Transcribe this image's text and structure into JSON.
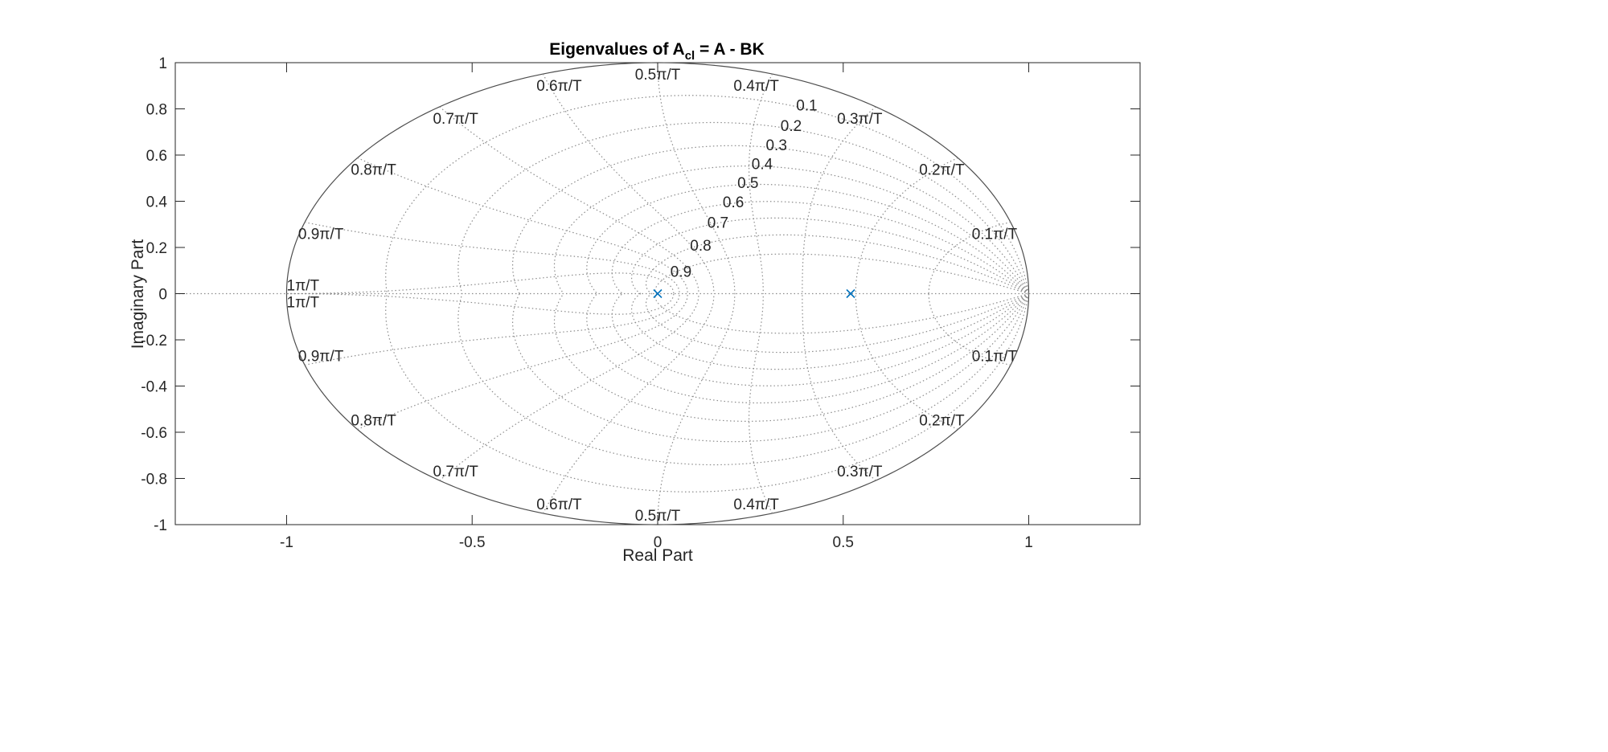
{
  "chart_data": {
    "type": "scatter",
    "title_main": "Eigenvalues of A",
    "title_subscript": "cl",
    "title_rest": " = A - BK",
    "xlabel": "Real Part",
    "ylabel": "Imaginary Part",
    "xlim": [
      -1.3,
      1.3
    ],
    "ylim": [
      -1,
      1
    ],
    "xticks": [
      -1,
      -0.5,
      0,
      0.5,
      1
    ],
    "xtick_labels": [
      "-1",
      "-0.5",
      "0",
      "0.5",
      "1"
    ],
    "yticks": [
      -1,
      -0.8,
      -0.6,
      -0.4,
      -0.2,
      0,
      0.2,
      0.4,
      0.6,
      0.8,
      1
    ],
    "ytick_labels": [
      "-1",
      "-0.8",
      "-0.6",
      "-0.4",
      "-0.2",
      "0",
      "0.2",
      "0.4",
      "0.6",
      "0.8",
      "1"
    ],
    "grid": "zgrid",
    "damping_ratios": [
      0.1,
      0.2,
      0.3,
      0.4,
      0.5,
      0.6,
      0.7,
      0.8,
      0.9
    ],
    "damping_labels": [
      "0.1",
      "0.2",
      "0.3",
      "0.4",
      "0.5",
      "0.6",
      "0.7",
      "0.8",
      "0.9"
    ],
    "natural_frequencies": [
      0.1,
      0.2,
      0.3,
      0.4,
      0.5,
      0.6,
      0.7,
      0.8,
      0.9,
      1
    ],
    "frequency_labels": [
      "0.1π/T",
      "0.2π/T",
      "0.3π/T",
      "0.4π/T",
      "0.5π/T",
      "0.6π/T",
      "0.7π/T",
      "0.8π/T",
      "0.9π/T",
      "1π/T"
    ],
    "series": [
      {
        "marker": "x",
        "color": "#0072bd",
        "points": [
          [
            0,
            0
          ],
          [
            0.52,
            0
          ]
        ]
      }
    ]
  },
  "colors": {
    "marker": "#0072bd",
    "grid": "#8c8c8c",
    "axis": "#262626",
    "unit_circle": "#4d4d4d"
  }
}
